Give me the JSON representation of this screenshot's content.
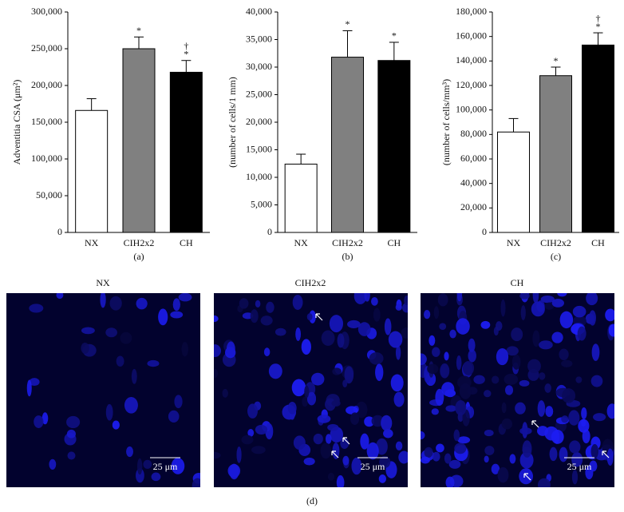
{
  "chart_data": [
    {
      "type": "bar",
      "panel_label": "(a)",
      "y_label": "Adventitia CSA (μm²)",
      "categories": [
        "NX",
        "CIH2x2",
        "CH"
      ],
      "values": [
        166000,
        250000,
        218000
      ],
      "errors": [
        16000,
        16000,
        16000
      ],
      "colors": [
        "#ffffff",
        "#808080",
        "#000000"
      ],
      "markers": [
        null,
        [
          "*"
        ],
        [
          "*",
          "†"
        ]
      ],
      "ylim": [
        0,
        300000
      ],
      "yticks": [
        0,
        {
          "value": 50000,
          "label": "50,000"
        },
        {
          "value": 100000,
          "label": "100,000"
        },
        {
          "value": 150000,
          "label": "150,000"
        },
        {
          "value": 200000,
          "label": "200,000"
        },
        {
          "value": 250000,
          "label": "250,000"
        },
        {
          "value": 300000,
          "label": "300,000"
        }
      ]
    },
    {
      "type": "bar",
      "panel_label": "(b)",
      "y_label": "(number of cells/1 mm)",
      "categories": [
        "NX",
        "CIH2x2",
        "CH"
      ],
      "values": [
        12400,
        31800,
        31200
      ],
      "errors": [
        1800,
        4800,
        3300
      ],
      "colors": [
        "#ffffff",
        "#808080",
        "#000000"
      ],
      "markers": [
        null,
        [
          "*"
        ],
        [
          "*"
        ]
      ],
      "ylim": [
        0,
        40000
      ],
      "yticks": [
        0,
        {
          "value": 5000,
          "label": "5,000"
        },
        {
          "value": 10000,
          "label": "10,000"
        },
        {
          "value": 15000,
          "label": "15,000"
        },
        {
          "value": 20000,
          "label": "20,000"
        },
        {
          "value": 25000,
          "label": "25,000"
        },
        {
          "value": 30000,
          "label": "30,000"
        },
        {
          "value": 35000,
          "label": "35,000"
        },
        {
          "value": 40000,
          "label": "40,000"
        }
      ]
    },
    {
      "type": "bar",
      "panel_label": "(c)",
      "y_label": "(number of cells/mm³)",
      "categories": [
        "NX",
        "CIH2x2",
        "CH"
      ],
      "values": [
        82000,
        128000,
        153000
      ],
      "errors": [
        11000,
        7000,
        10000
      ],
      "colors": [
        "#ffffff",
        "#808080",
        "#000000"
      ],
      "markers": [
        null,
        [
          "*"
        ],
        [
          "*",
          "†"
        ]
      ],
      "ylim": [
        0,
        180000
      ],
      "yticks": [
        0,
        {
          "value": 20000,
          "label": "20,000"
        },
        {
          "value": 40000,
          "label": "40,000"
        },
        {
          "value": 60000,
          "label": "60,000"
        },
        {
          "value": 80000,
          "label": "80,000"
        },
        {
          "value": 100000,
          "label": "100,000"
        },
        {
          "value": 120000,
          "label": "120,000"
        },
        {
          "value": 140000,
          "label": "140,000"
        },
        {
          "value": 160000,
          "label": "160,000"
        },
        {
          "value": 180000,
          "label": "180,000"
        }
      ]
    }
  ],
  "images": [
    {
      "title": "NX",
      "scale_bar": "25 μm"
    },
    {
      "title": "CIH2x2",
      "scale_bar": "25 μm"
    },
    {
      "title": "CH",
      "scale_bar": "25 μm"
    }
  ],
  "images_panel_label": "(d)"
}
